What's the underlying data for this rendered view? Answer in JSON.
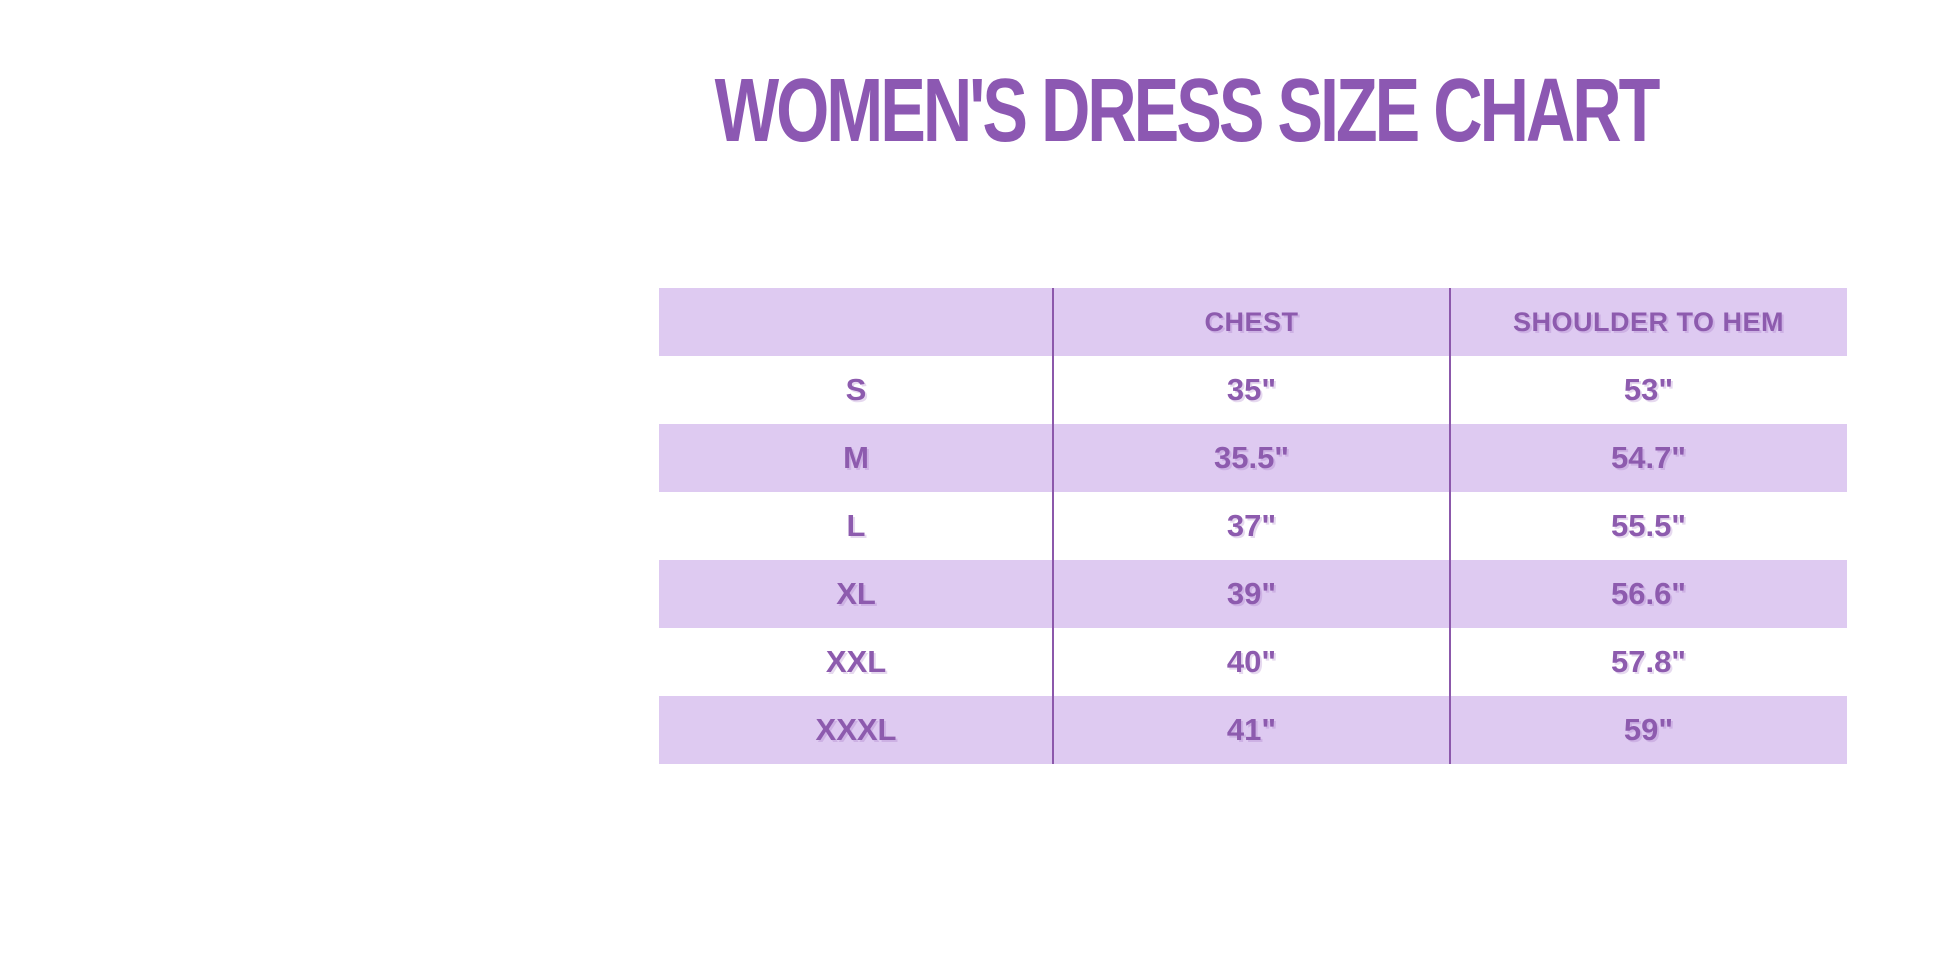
{
  "title": "WOMEN'S DRESS SIZE CHART",
  "colors": {
    "background": "#ffffff",
    "title_purple": "#8c58b2",
    "text_purple": "#8d5bae",
    "stripe_lavender": "#decaf1",
    "divider_purple": "#8c58ab"
  },
  "size_chart": {
    "columns": [
      "",
      "CHEST",
      "SHOULDER TO HEM"
    ],
    "rows": [
      {
        "size": "S",
        "chest": "35\"",
        "shoulder_to_hem": "53\""
      },
      {
        "size": "M",
        "chest": "35.5\"",
        "shoulder_to_hem": "54.7\""
      },
      {
        "size": "L",
        "chest": "37\"",
        "shoulder_to_hem": "55.5\""
      },
      {
        "size": "XL",
        "chest": "39\"",
        "shoulder_to_hem": "56.6\""
      },
      {
        "size": "XXL",
        "chest": "40\"",
        "shoulder_to_hem": "57.8\""
      },
      {
        "size": "XXXL",
        "chest": "41\"",
        "shoulder_to_hem": "59\""
      }
    ]
  },
  "chart_data": {
    "type": "table",
    "title": "WOMEN'S DRESS SIZE CHART",
    "columns": [
      "",
      "CHEST",
      "SHOULDER TO HEM"
    ],
    "rows": [
      [
        "S",
        "35\"",
        "53\""
      ],
      [
        "M",
        "35.5\"",
        "54.7\""
      ],
      [
        "L",
        "37\"",
        "55.5\""
      ],
      [
        "XL",
        "39\"",
        "56.6\""
      ],
      [
        "XXL",
        "40\"",
        "57.8\""
      ],
      [
        "XXXL",
        "41\"",
        "59\""
      ]
    ],
    "layout_hints": {
      "header_background": "#decaf1",
      "striped_rows": true,
      "stripe_color": "#decaf1",
      "grid": "vertical-dividers-only",
      "text_align": "center"
    }
  }
}
